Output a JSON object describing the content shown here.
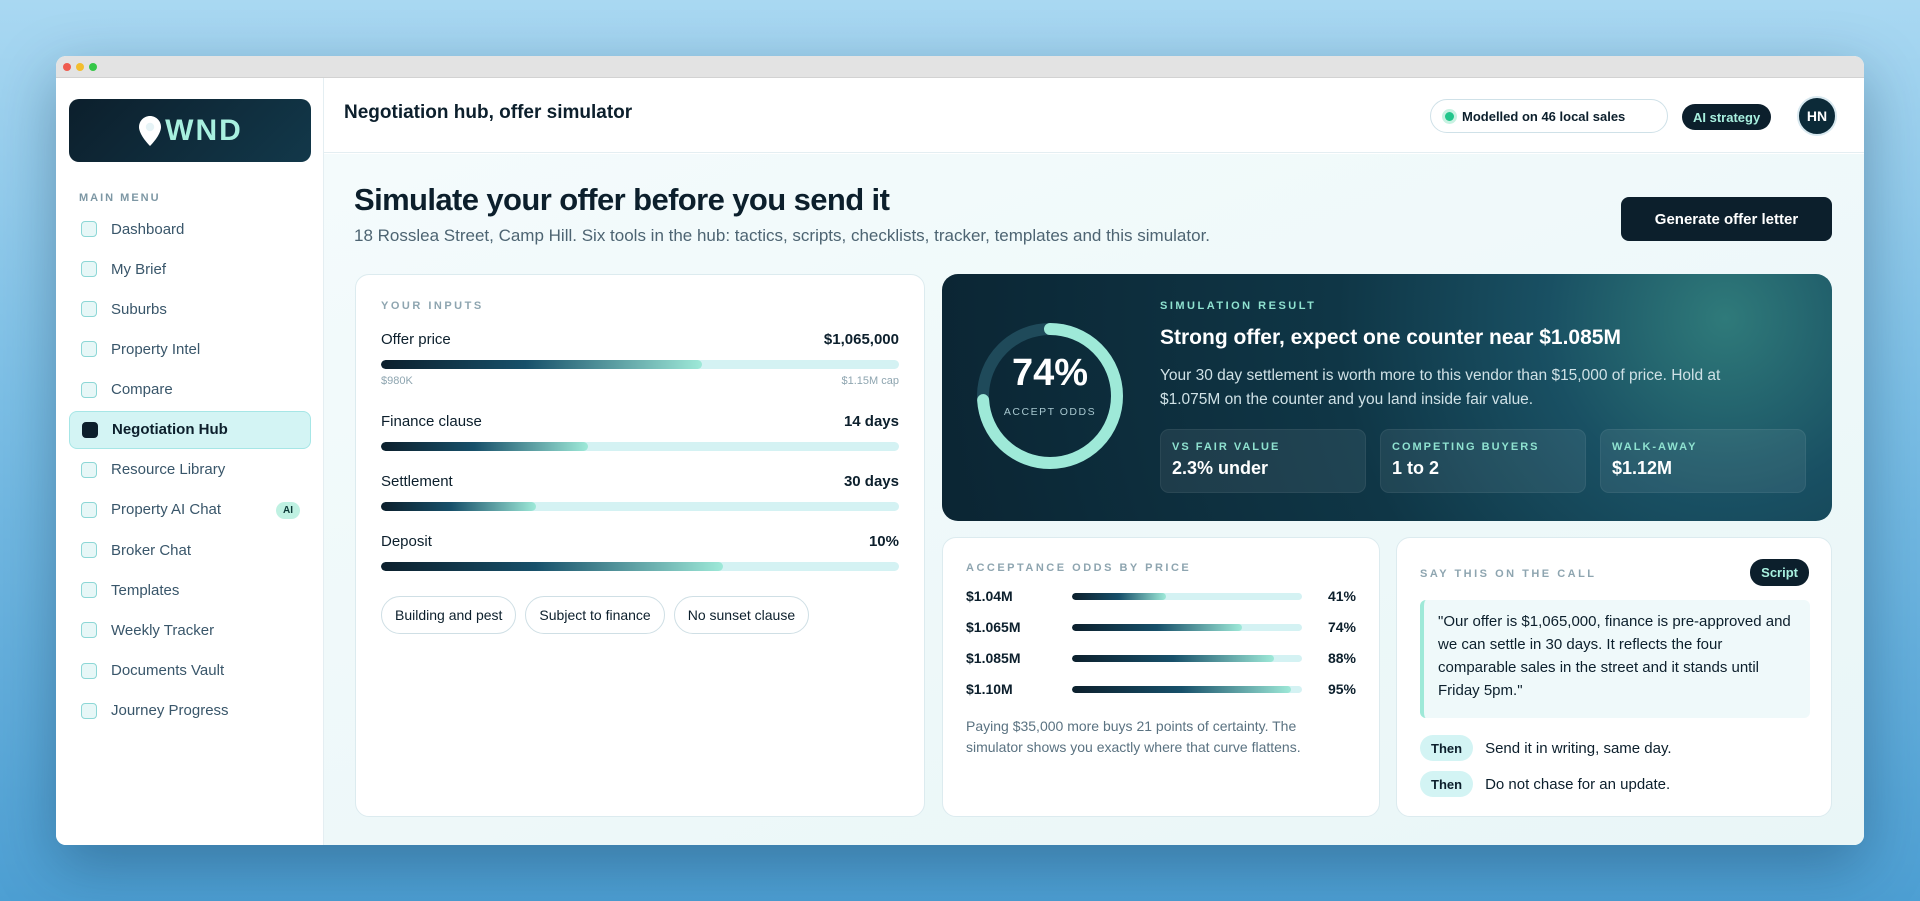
{
  "app": {
    "brand": "WND",
    "page_title": "Negotiation hub, offer simulator"
  },
  "header": {
    "model_status": "Modelled on 46 local sales",
    "ai_badge": "AI strategy",
    "avatar_initials": "HN"
  },
  "sidebar": {
    "section_title": "MAIN MENU",
    "items": [
      {
        "label": "Dashboard",
        "active": false
      },
      {
        "label": "My Brief",
        "active": false
      },
      {
        "label": "Suburbs",
        "active": false
      },
      {
        "label": "Property Intel",
        "active": false
      },
      {
        "label": "Compare",
        "active": false
      },
      {
        "label": "Negotiation Hub",
        "active": true
      },
      {
        "label": "Resource Library",
        "active": false
      },
      {
        "label": "Property AI Chat",
        "active": false,
        "badge": "AI"
      },
      {
        "label": "Broker Chat",
        "active": false
      },
      {
        "label": "Templates",
        "active": false
      },
      {
        "label": "Weekly Tracker",
        "active": false
      },
      {
        "label": "Documents Vault",
        "active": false
      },
      {
        "label": "Journey Progress",
        "active": false
      }
    ]
  },
  "main": {
    "heading": "Simulate your offer before you send it",
    "subheading": "18 Rosslea Street, Camp Hill. Six tools in the hub: tactics, scripts, checklists, tracker, templates and this simulator.",
    "generate_button": "Generate offer letter"
  },
  "inputs": {
    "label": "YOUR INPUTS",
    "sliders": [
      {
        "name": "Offer price",
        "value": "$1,065,000",
        "level": 0.62,
        "min_label": "$980K",
        "max_label": "$1.15M cap"
      },
      {
        "name": "Finance clause",
        "value": "14 days",
        "level": 0.4
      },
      {
        "name": "Settlement",
        "value": "30 days",
        "level": 0.3
      },
      {
        "name": "Deposit",
        "value": "10%",
        "level": 0.66
      }
    ],
    "chips": [
      "Building and pest",
      "Subject to finance",
      "No sunset clause"
    ]
  },
  "result": {
    "label": "SIMULATION RESULT",
    "accept_pct": "74%",
    "accept_level": 0.74,
    "accept_caption": "ACCEPT ODDS",
    "title": "Strong offer, expect one counter near $1.085M",
    "description": "Your 30 day settlement is worth more to this vendor than $15,000 of price. Hold at $1.075M on the counter and you land inside fair value.",
    "stats": [
      {
        "label": "VS FAIR VALUE",
        "value": "2.3% under"
      },
      {
        "label": "COMPETING BUYERS",
        "value": "1 to 2"
      },
      {
        "label": "WALK-AWAY",
        "value": "$1.12M"
      }
    ]
  },
  "odds": {
    "label": "ACCEPTANCE ODDS BY PRICE",
    "rows": [
      {
        "price": "$1.04M",
        "pct": "41%",
        "level": 0.41
      },
      {
        "price": "$1.065M",
        "pct": "74%",
        "level": 0.74
      },
      {
        "price": "$1.085M",
        "pct": "88%",
        "level": 0.88
      },
      {
        "price": "$1.10M",
        "pct": "95%",
        "level": 0.95
      }
    ],
    "note": "Paying $35,000 more buys 21 points of certainty. The simulator shows you exactly where that curve flattens."
  },
  "script": {
    "label": "SAY THIS ON THE CALL",
    "button": "Script",
    "quote": "\"Our offer is $1,065,000, finance is pre-approved and we can settle in 30 days. It reflects the four comparable sales in the street and it stands until Friday 5pm.\"",
    "steps": [
      {
        "badge": "Then",
        "text": "Send it in writing, same day."
      },
      {
        "badge": "Then",
        "text": "Do not chase for an update."
      }
    ]
  },
  "colors": {
    "navy": "#0c1f2c",
    "mint": "#9ee9d8",
    "accent_light": "#d3f4f4",
    "status_green": "#22c58b"
  }
}
